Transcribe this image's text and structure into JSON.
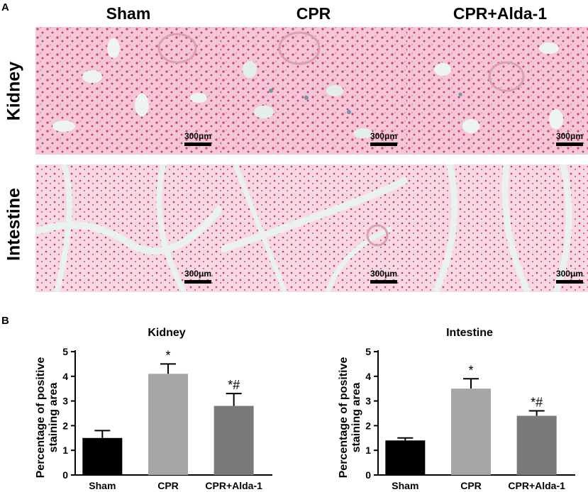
{
  "panel_labels": [
    "A",
    "B"
  ],
  "micrograph_grid": {
    "columns": [
      "Sham",
      "CPR",
      "CPR+Alda-1"
    ],
    "rows": [
      "Kidney",
      "Intestine"
    ],
    "scale_bar": "300μm"
  },
  "chart_data": [
    {
      "type": "bar",
      "title": "Kidney",
      "ylabel": "Percentage of positive staining area",
      "categories": [
        "Sham",
        "CPR",
        "CPR+Alda-1"
      ],
      "values": [
        1.5,
        4.1,
        2.8
      ],
      "errors": [
        0.3,
        0.4,
        0.5
      ],
      "annotations": [
        "",
        "*",
        "*#"
      ],
      "bar_colors": [
        "#000000",
        "#a6a6a6",
        "#7a7a7a"
      ],
      "ylim": [
        0,
        5
      ],
      "yticks": [
        "0",
        "1",
        "2",
        "3",
        "4",
        "5"
      ]
    },
    {
      "type": "bar",
      "title": "Intestine",
      "ylabel": "Percentage of positive staining area",
      "categories": [
        "Sham",
        "CPR",
        "CPR+Alda-1"
      ],
      "values": [
        1.4,
        3.5,
        2.4
      ],
      "errors": [
        0.1,
        0.4,
        0.2
      ],
      "annotations": [
        "",
        "*",
        "*#"
      ],
      "bar_colors": [
        "#000000",
        "#a6a6a6",
        "#7a7a7a"
      ],
      "ylim": [
        0,
        5
      ],
      "yticks": [
        "0",
        "1",
        "2",
        "3",
        "4",
        "5"
      ]
    }
  ]
}
